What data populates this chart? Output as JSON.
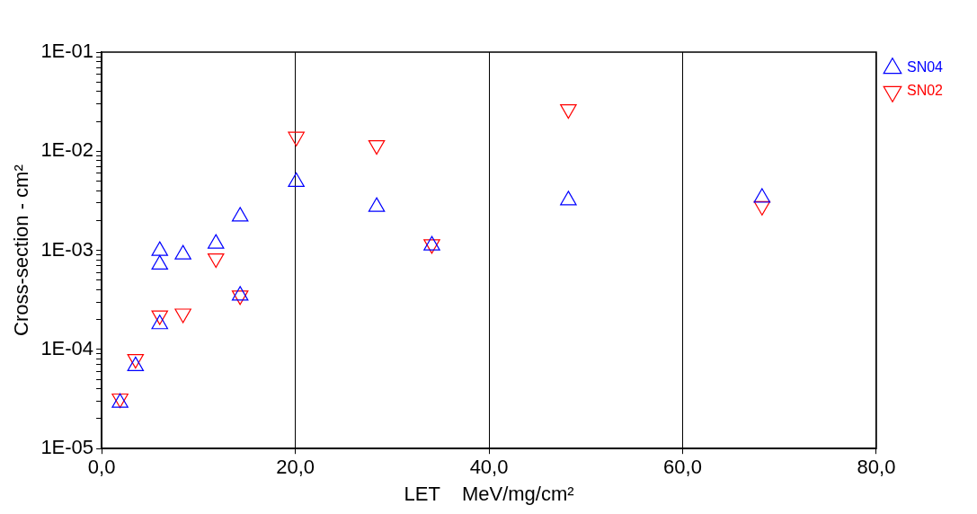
{
  "chart_data": {
    "type": "scatter",
    "xlabel": "LET    MeV/mg/cm²",
    "ylabel": "Cross-section - cm²",
    "series": [
      {
        "name": "SN04",
        "color": "#0000ff",
        "marker": "triangle",
        "x": [
          1.9,
          3.5,
          6.0,
          6.0,
          6.0,
          8.4,
          11.8,
          14.3,
          14.3,
          20.1,
          28.4,
          34.1,
          48.2,
          68.2
        ],
        "values": [
          2.9e-05,
          6.8e-05,
          0.00099,
          0.00072,
          0.00018,
          0.00091,
          0.00117,
          0.0022,
          0.00035,
          0.0049,
          0.00275,
          0.00112,
          0.0032,
          0.0034
        ]
      },
      {
        "name": "SN02",
        "color": "#ff0000",
        "marker": "triangle-down",
        "x": [
          1.9,
          3.5,
          6.0,
          8.4,
          11.8,
          14.3,
          20.1,
          28.4,
          34.1,
          48.2,
          68.2
        ],
        "values": [
          3.2e-05,
          8e-05,
          0.00022,
          0.00023,
          0.00083,
          0.00035,
          0.014,
          0.0115,
          0.00115,
          0.0265,
          0.0028
        ]
      }
    ],
    "xlim": [
      0,
      80
    ],
    "xticks": [
      {
        "value": 0,
        "label": "0,0"
      },
      {
        "value": 20,
        "label": "20,0"
      },
      {
        "value": 40,
        "label": "40,0"
      },
      {
        "value": 60,
        "label": "60,0"
      },
      {
        "value": 80,
        "label": "80,0"
      }
    ],
    "ylim": [
      1e-05,
      0.1
    ],
    "yticks": [
      {
        "value": 1e-05,
        "label": "1E-05"
      },
      {
        "value": 2e-05,
        "label": null
      },
      {
        "value": 3e-05,
        "label": null
      },
      {
        "value": 4e-05,
        "label": null
      },
      {
        "value": 5e-05,
        "label": null
      },
      {
        "value": 6e-05,
        "label": null
      },
      {
        "value": 7e-05,
        "label": null
      },
      {
        "value": 8e-05,
        "label": null
      },
      {
        "value": 9e-05,
        "label": null
      },
      {
        "value": 0.0001,
        "label": "1E-04"
      },
      {
        "value": 0.0002,
        "label": null
      },
      {
        "value": 0.0003,
        "label": null
      },
      {
        "value": 0.0004,
        "label": null
      },
      {
        "value": 0.0005,
        "label": null
      },
      {
        "value": 0.0006,
        "label": null
      },
      {
        "value": 0.0007,
        "label": null
      },
      {
        "value": 0.0008,
        "label": null
      },
      {
        "value": 0.0009,
        "label": null
      },
      {
        "value": 0.001,
        "label": "1E-03"
      },
      {
        "value": 0.002,
        "label": null
      },
      {
        "value": 0.003,
        "label": null
      },
      {
        "value": 0.004,
        "label": null
      },
      {
        "value": 0.005,
        "label": null
      },
      {
        "value": 0.006,
        "label": null
      },
      {
        "value": 0.007,
        "label": null
      },
      {
        "value": 0.008,
        "label": null
      },
      {
        "value": 0.009,
        "label": null
      },
      {
        "value": 0.01,
        "label": "1E-02"
      },
      {
        "value": 0.02,
        "label": null
      },
      {
        "value": 0.03,
        "label": null
      },
      {
        "value": 0.04,
        "label": null
      },
      {
        "value": 0.05,
        "label": null
      },
      {
        "value": 0.06,
        "label": null
      },
      {
        "value": 0.07,
        "label": null
      },
      {
        "value": 0.08,
        "label": null
      },
      {
        "value": 0.09,
        "label": null
      },
      {
        "value": 0.1,
        "label": "1E-01"
      }
    ],
    "log": "y",
    "grid": "x",
    "legend": "top right"
  }
}
